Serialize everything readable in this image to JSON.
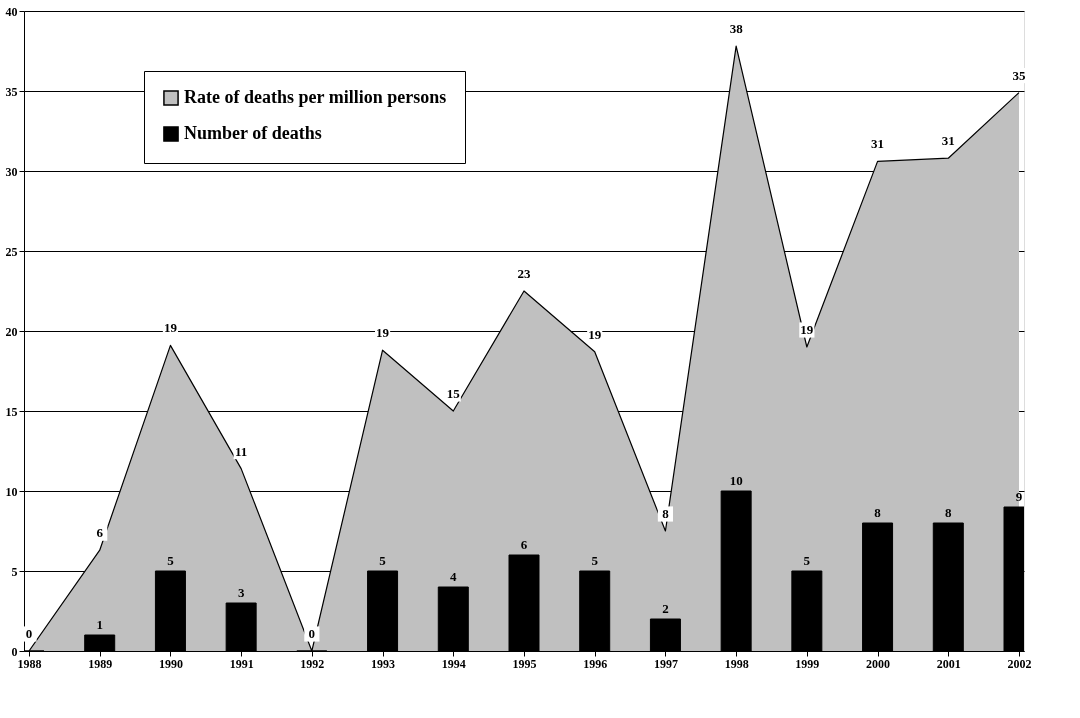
{
  "chart_data": {
    "type": "area",
    "x": [
      1988,
      1989,
      1990,
      1991,
      1992,
      1993,
      1994,
      1995,
      1996,
      1997,
      1998,
      1999,
      2000,
      2001,
      2002
    ],
    "xlim": [
      1988,
      2002
    ],
    "xticks": [
      1988,
      1989,
      1990,
      1991,
      1992,
      1993,
      1994,
      1995,
      1996,
      1997,
      1998,
      1999,
      2000,
      2001,
      2002
    ],
    "ylim": [
      0,
      40
    ],
    "yticks": [
      0,
      5,
      10,
      15,
      20,
      25,
      30,
      35,
      40
    ],
    "grid": "y",
    "legend": "top left",
    "series": [
      {
        "name": "Rate of deaths per million persons",
        "color": "#c0c0c0",
        "values": [
          0,
          6.3,
          19.1,
          11.4,
          0,
          18.8,
          15,
          22.5,
          18.7,
          7.5,
          37.8,
          19,
          30.6,
          30.8,
          34.9
        ],
        "value_labels": [
          "0",
          "6",
          "19",
          "11",
          "0",
          "19",
          "15",
          "23",
          "19",
          "8",
          "38",
          "19",
          "31",
          "31",
          "35"
        ]
      },
      {
        "name": "Number of deaths",
        "type": "bar",
        "color": "#000000",
        "values": [
          0,
          1,
          5,
          3,
          0,
          5,
          4,
          6,
          5,
          2,
          10,
          5,
          8,
          8,
          9
        ],
        "value_labels": [
          null,
          "1",
          "5",
          "3",
          null,
          "5",
          "4",
          "6",
          "5",
          "2",
          "10",
          "5",
          "8",
          "8",
          "9"
        ]
      }
    ]
  }
}
